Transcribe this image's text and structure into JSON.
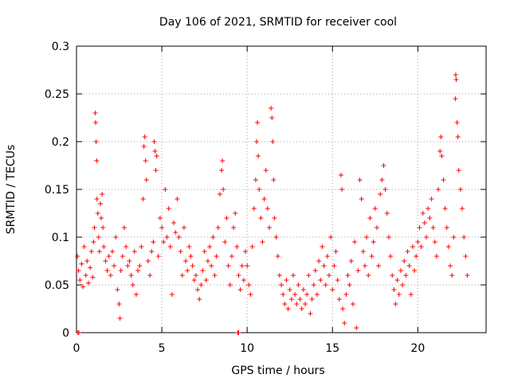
{
  "chart_data": {
    "type": "scatter",
    "title": "Day 106 of 2021, SRMTID for receiver cool",
    "xlabel": "GPS time / hours",
    "ylabel": "SRMTID / TECUs",
    "xlim": [
      0,
      24
    ],
    "ylim": [
      0,
      0.3
    ],
    "xticks": [
      0,
      5,
      10,
      15,
      20
    ],
    "xtick_labels": [
      "0",
      "5",
      "10",
      "15",
      "20"
    ],
    "yticks": [
      0,
      0.05,
      0.1,
      0.15,
      0.2,
      0.25,
      0.3
    ],
    "ytick_labels": [
      "0",
      "0.05",
      "0.1",
      "0.15",
      "0.2",
      "0.25",
      "0.3"
    ],
    "grid": true,
    "marker": "+",
    "color": "#ff0000",
    "series": [
      {
        "name": "SRMTID",
        "points": [
          [
            0.05,
            0.08
          ],
          [
            0.12,
            0.065
          ],
          [
            0.2,
            0.055
          ],
          [
            0.3,
            0.072
          ],
          [
            0.38,
            0.048
          ],
          [
            0.45,
            0.09
          ],
          [
            0.55,
            0.06
          ],
          [
            0.62,
            0.075
          ],
          [
            0.7,
            0.052
          ],
          [
            0.8,
            0.068
          ],
          [
            0.88,
            0.085
          ],
          [
            0.95,
            0.058
          ],
          [
            1.0,
            0.095
          ],
          [
            1.05,
            0.11
          ],
          [
            1.1,
            0.23
          ],
          [
            1.12,
            0.22
          ],
          [
            1.15,
            0.2
          ],
          [
            1.18,
            0.18
          ],
          [
            1.2,
            0.14
          ],
          [
            1.25,
            0.125
          ],
          [
            1.3,
            0.1
          ],
          [
            1.35,
            0.085
          ],
          [
            1.4,
            0.135
          ],
          [
            1.45,
            0.12
          ],
          [
            1.5,
            0.145
          ],
          [
            1.55,
            0.11
          ],
          [
            1.6,
            0.09
          ],
          [
            1.7,
            0.075
          ],
          [
            1.8,
            0.065
          ],
          [
            1.9,
            0.08
          ],
          [
            2.0,
            0.06
          ],
          [
            2.1,
            0.085
          ],
          [
            2.2,
            0.07
          ],
          [
            2.3,
            0.1
          ],
          [
            2.4,
            0.045
          ],
          [
            2.5,
            0.03
          ],
          [
            2.55,
            0.015
          ],
          [
            2.6,
            0.065
          ],
          [
            2.7,
            0.08
          ],
          [
            2.8,
            0.11
          ],
          [
            2.9,
            0.09
          ],
          [
            3.0,
            0.07
          ],
          [
            3.1,
            0.075
          ],
          [
            3.2,
            0.06
          ],
          [
            3.3,
            0.05
          ],
          [
            3.4,
            0.085
          ],
          [
            3.5,
            0.04
          ],
          [
            3.6,
            0.065
          ],
          [
            3.7,
            0.07
          ],
          [
            3.8,
            0.09
          ],
          [
            3.9,
            0.14
          ],
          [
            3.95,
            0.195
          ],
          [
            4.0,
            0.205
          ],
          [
            4.05,
            0.18
          ],
          [
            4.1,
            0.16
          ],
          [
            4.2,
            0.075
          ],
          [
            4.3,
            0.06
          ],
          [
            4.4,
            0.085
          ],
          [
            4.5,
            0.095
          ],
          [
            4.55,
            0.2
          ],
          [
            4.6,
            0.19
          ],
          [
            4.65,
            0.17
          ],
          [
            4.7,
            0.185
          ],
          [
            4.8,
            0.08
          ],
          [
            4.9,
            0.12
          ],
          [
            5.0,
            0.11
          ],
          [
            5.1,
            0.095
          ],
          [
            5.2,
            0.15
          ],
          [
            5.3,
            0.1
          ],
          [
            5.4,
            0.13
          ],
          [
            5.5,
            0.09
          ],
          [
            5.6,
            0.04
          ],
          [
            5.7,
            0.115
          ],
          [
            5.8,
            0.105
          ],
          [
            5.9,
            0.14
          ],
          [
            6.0,
            0.1
          ],
          [
            6.1,
            0.085
          ],
          [
            6.2,
            0.06
          ],
          [
            6.3,
            0.11
          ],
          [
            6.4,
            0.075
          ],
          [
            6.5,
            0.065
          ],
          [
            6.6,
            0.09
          ],
          [
            6.7,
            0.08
          ],
          [
            6.8,
            0.07
          ],
          [
            6.9,
            0.055
          ],
          [
            7.0,
            0.06
          ],
          [
            7.1,
            0.045
          ],
          [
            7.2,
            0.035
          ],
          [
            7.3,
            0.05
          ],
          [
            7.4,
            0.065
          ],
          [
            7.5,
            0.085
          ],
          [
            7.6,
            0.055
          ],
          [
            7.7,
            0.075
          ],
          [
            7.8,
            0.09
          ],
          [
            7.9,
            0.07
          ],
          [
            8.0,
            0.1
          ],
          [
            8.1,
            0.06
          ],
          [
            8.2,
            0.08
          ],
          [
            8.3,
            0.11
          ],
          [
            8.4,
            0.145
          ],
          [
            8.5,
            0.17
          ],
          [
            8.55,
            0.18
          ],
          [
            8.6,
            0.15
          ],
          [
            8.7,
            0.095
          ],
          [
            8.8,
            0.12
          ],
          [
            8.9,
            0.07
          ],
          [
            9.0,
            0.05
          ],
          [
            9.1,
            0.08
          ],
          [
            9.2,
            0.11
          ],
          [
            9.3,
            0.125
          ],
          [
            9.4,
            0.09
          ],
          [
            9.5,
            0.06
          ],
          [
            9.6,
            0.045
          ],
          [
            9.7,
            0.07
          ],
          [
            9.8,
            0.055
          ],
          [
            9.9,
            0.085
          ],
          [
            10.0,
            0.07
          ],
          [
            10.1,
            0.05
          ],
          [
            10.2,
            0.04
          ],
          [
            10.3,
            0.09
          ],
          [
            10.4,
            0.13
          ],
          [
            10.5,
            0.16
          ],
          [
            10.55,
            0.2
          ],
          [
            10.6,
            0.22
          ],
          [
            10.65,
            0.185
          ],
          [
            10.7,
            0.15
          ],
          [
            10.8,
            0.12
          ],
          [
            10.9,
            0.095
          ],
          [
            11.0,
            0.14
          ],
          [
            11.1,
            0.17
          ],
          [
            11.2,
            0.13
          ],
          [
            11.3,
            0.11
          ],
          [
            11.4,
            0.235
          ],
          [
            11.45,
            0.225
          ],
          [
            11.5,
            0.2
          ],
          [
            11.55,
            0.16
          ],
          [
            11.6,
            0.12
          ],
          [
            11.7,
            0.1
          ],
          [
            11.8,
            0.08
          ],
          [
            11.9,
            0.06
          ],
          [
            12.0,
            0.05
          ],
          [
            12.1,
            0.04
          ],
          [
            12.2,
            0.03
          ],
          [
            12.3,
            0.055
          ],
          [
            12.4,
            0.025
          ],
          [
            12.5,
            0.045
          ],
          [
            12.6,
            0.035
          ],
          [
            12.7,
            0.06
          ],
          [
            12.8,
            0.04
          ],
          [
            12.9,
            0.03
          ],
          [
            13.0,
            0.05
          ],
          [
            13.1,
            0.035
          ],
          [
            13.2,
            0.025
          ],
          [
            13.3,
            0.045
          ],
          [
            13.4,
            0.03
          ],
          [
            13.5,
            0.04
          ],
          [
            13.6,
            0.06
          ],
          [
            13.7,
            0.02
          ],
          [
            13.8,
            0.035
          ],
          [
            13.9,
            0.05
          ],
          [
            14.0,
            0.065
          ],
          [
            14.1,
            0.04
          ],
          [
            14.2,
            0.075
          ],
          [
            14.3,
            0.055
          ],
          [
            14.4,
            0.09
          ],
          [
            14.5,
            0.07
          ],
          [
            14.6,
            0.05
          ],
          [
            14.7,
            0.08
          ],
          [
            14.8,
            0.06
          ],
          [
            14.9,
            0.1
          ],
          [
            15.0,
            0.045
          ],
          [
            15.1,
            0.07
          ],
          [
            15.2,
            0.085
          ],
          [
            15.3,
            0.055
          ],
          [
            15.4,
            0.035
          ],
          [
            15.5,
            0.165
          ],
          [
            15.55,
            0.15
          ],
          [
            15.6,
            0.025
          ],
          [
            15.7,
            0.01
          ],
          [
            15.8,
            0.04
          ],
          [
            15.9,
            0.06
          ],
          [
            16.0,
            0.05
          ],
          [
            16.1,
            0.075
          ],
          [
            16.2,
            0.03
          ],
          [
            16.3,
            0.095
          ],
          [
            16.4,
            0.005
          ],
          [
            16.5,
            0.065
          ],
          [
            16.6,
            0.16
          ],
          [
            16.7,
            0.14
          ],
          [
            16.8,
            0.085
          ],
          [
            16.9,
            0.07
          ],
          [
            17.0,
            0.1
          ],
          [
            17.1,
            0.06
          ],
          [
            17.2,
            0.12
          ],
          [
            17.3,
            0.08
          ],
          [
            17.4,
            0.095
          ],
          [
            17.5,
            0.13
          ],
          [
            17.6,
            0.11
          ],
          [
            17.7,
            0.07
          ],
          [
            17.8,
            0.145
          ],
          [
            17.9,
            0.16
          ],
          [
            18.0,
            0.175
          ],
          [
            18.1,
            0.15
          ],
          [
            18.2,
            0.125
          ],
          [
            18.3,
            0.1
          ],
          [
            18.4,
            0.08
          ],
          [
            18.5,
            0.06
          ],
          [
            18.6,
            0.045
          ],
          [
            18.7,
            0.03
          ],
          [
            18.8,
            0.055
          ],
          [
            18.9,
            0.04
          ],
          [
            19.0,
            0.065
          ],
          [
            19.1,
            0.05
          ],
          [
            19.2,
            0.075
          ],
          [
            19.3,
            0.06
          ],
          [
            19.4,
            0.085
          ],
          [
            19.5,
            0.07
          ],
          [
            19.6,
            0.04
          ],
          [
            19.7,
            0.09
          ],
          [
            19.8,
            0.065
          ],
          [
            19.9,
            0.08
          ],
          [
            20.0,
            0.095
          ],
          [
            20.1,
            0.11
          ],
          [
            20.2,
            0.09
          ],
          [
            20.3,
            0.125
          ],
          [
            20.4,
            0.115
          ],
          [
            20.5,
            0.1
          ],
          [
            20.6,
            0.13
          ],
          [
            20.7,
            0.12
          ],
          [
            20.8,
            0.14
          ],
          [
            20.9,
            0.11
          ],
          [
            21.0,
            0.095
          ],
          [
            21.1,
            0.08
          ],
          [
            21.2,
            0.15
          ],
          [
            21.3,
            0.19
          ],
          [
            21.35,
            0.205
          ],
          [
            21.4,
            0.185
          ],
          [
            21.5,
            0.16
          ],
          [
            21.6,
            0.13
          ],
          [
            21.7,
            0.11
          ],
          [
            21.8,
            0.09
          ],
          [
            21.9,
            0.07
          ],
          [
            22.0,
            0.06
          ],
          [
            22.1,
            0.1
          ],
          [
            22.2,
            0.245
          ],
          [
            22.22,
            0.27
          ],
          [
            22.25,
            0.265
          ],
          [
            22.3,
            0.22
          ],
          [
            22.35,
            0.205
          ],
          [
            22.4,
            0.17
          ],
          [
            22.5,
            0.15
          ],
          [
            22.6,
            0.13
          ],
          [
            22.7,
            0.1
          ],
          [
            22.8,
            0.08
          ],
          [
            22.9,
            0.06
          ],
          [
            0.08,
            0.0
          ],
          [
            0.14,
            0.0
          ],
          [
            9.45,
            0.0
          ],
          [
            9.5,
            0.0
          ]
        ]
      }
    ]
  }
}
